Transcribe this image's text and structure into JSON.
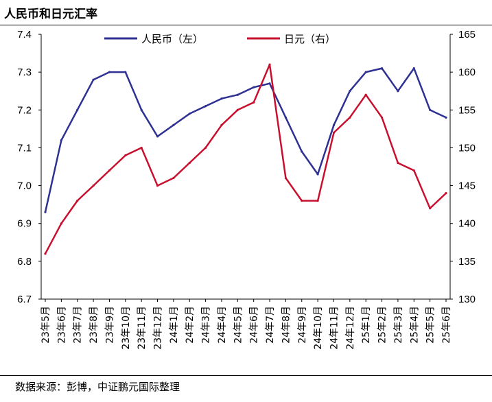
{
  "title": "人民币和日元汇率",
  "source": "数据来源：彭博，中证鹏元国际整理",
  "colors": {
    "cny": "#2E3192",
    "jpy": "#C8102E"
  },
  "chart_data": {
    "type": "line",
    "title": "人民币和日元汇率",
    "x": [
      "23年5月",
      "23年6月",
      "23年7月",
      "23年8月",
      "23年9月",
      "23年10月",
      "23年11月",
      "23年12月",
      "24年1月",
      "24年2月",
      "24年3月",
      "24年4月",
      "24年5月",
      "24年6月",
      "24年7月",
      "24年8月",
      "24年9月",
      "24年10月",
      "24年11月",
      "24年12月",
      "25年1月",
      "25年2月",
      "25年3月",
      "25年4月",
      "25年5月",
      "25年6月"
    ],
    "series": [
      {
        "name": "人民币（左）",
        "axis": "left",
        "values": [
          6.93,
          7.12,
          7.2,
          7.28,
          7.3,
          7.3,
          7.2,
          7.13,
          7.16,
          7.19,
          7.21,
          7.23,
          7.24,
          7.26,
          7.27,
          7.18,
          7.09,
          7.03,
          7.16,
          7.25,
          7.3,
          7.31,
          7.25,
          7.31,
          7.2,
          7.18
        ]
      },
      {
        "name": "日元（右）",
        "axis": "right",
        "values": [
          136,
          140,
          143,
          145,
          147,
          149,
          150,
          145,
          146,
          148,
          150,
          153,
          155,
          156,
          161,
          146,
          143,
          143,
          152,
          154,
          157,
          154,
          148,
          147,
          142,
          144
        ]
      }
    ],
    "y_left": {
      "ylim": [
        6.7,
        7.4
      ],
      "ticks": [
        "6.7",
        "6.8",
        "6.9",
        "7.0",
        "7.1",
        "7.2",
        "7.3",
        "7.4"
      ]
    },
    "y_right": {
      "ylim": [
        130,
        165
      ],
      "ticks": [
        "130",
        "135",
        "140",
        "145",
        "150",
        "155",
        "160",
        "165"
      ]
    },
    "legend": {
      "position": "top-center",
      "entries": [
        "人民币（左）",
        "日元（右）"
      ]
    },
    "grid": false
  }
}
